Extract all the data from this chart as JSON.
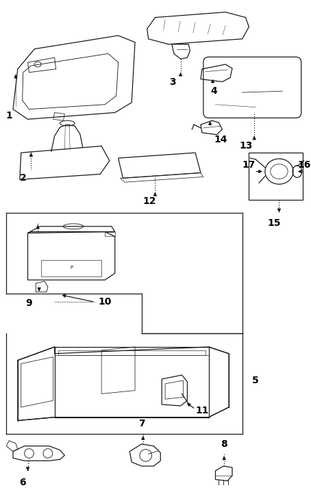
{
  "background_color": "#ffffff",
  "line_color": "#1a1a1a",
  "label_color": "#000000",
  "fig_width": 4.54,
  "fig_height": 7.35,
  "dpi": 100
}
